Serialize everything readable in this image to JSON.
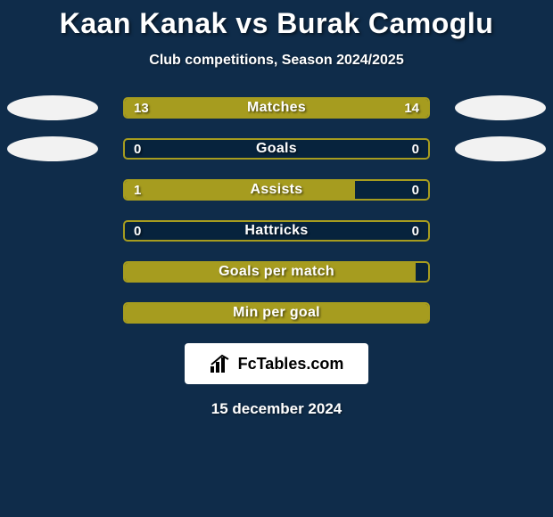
{
  "background_color": "#0f2c4a",
  "text_color": "#ffffff",
  "accent_color": "#a69c1f",
  "ellipse_color": "#f2f2f2",
  "bar_bg_dark": "#07233d",
  "title": "Kaan Kanak vs Burak Camoglu",
  "subtitle": "Club competitions, Season 2024/2025",
  "date": "15 december 2024",
  "logo": {
    "box_bg": "#ffffff",
    "text_color": "#000000",
    "text": "FcTables.com"
  },
  "rows": [
    {
      "label": "Matches",
      "left_val": "13",
      "right_val": "14",
      "left_pct": 48.1,
      "right_pct": 51.9,
      "show_ellipses": true
    },
    {
      "label": "Goals",
      "left_val": "0",
      "right_val": "0",
      "left_pct": 0,
      "right_pct": 0,
      "show_ellipses": true
    },
    {
      "label": "Assists",
      "left_val": "1",
      "right_val": "0",
      "left_pct": 76.0,
      "right_pct": 0,
      "show_ellipses": false
    },
    {
      "label": "Hattricks",
      "left_val": "0",
      "right_val": "0",
      "left_pct": 0,
      "right_pct": 0,
      "show_ellipses": false
    },
    {
      "label": "Goals per match",
      "left_val": "",
      "right_val": "",
      "left_pct": 96.0,
      "right_pct": 0,
      "show_ellipses": false
    },
    {
      "label": "Min per goal",
      "left_val": "",
      "right_val": "",
      "left_pct": 100,
      "right_pct": 0,
      "show_ellipses": false
    }
  ]
}
